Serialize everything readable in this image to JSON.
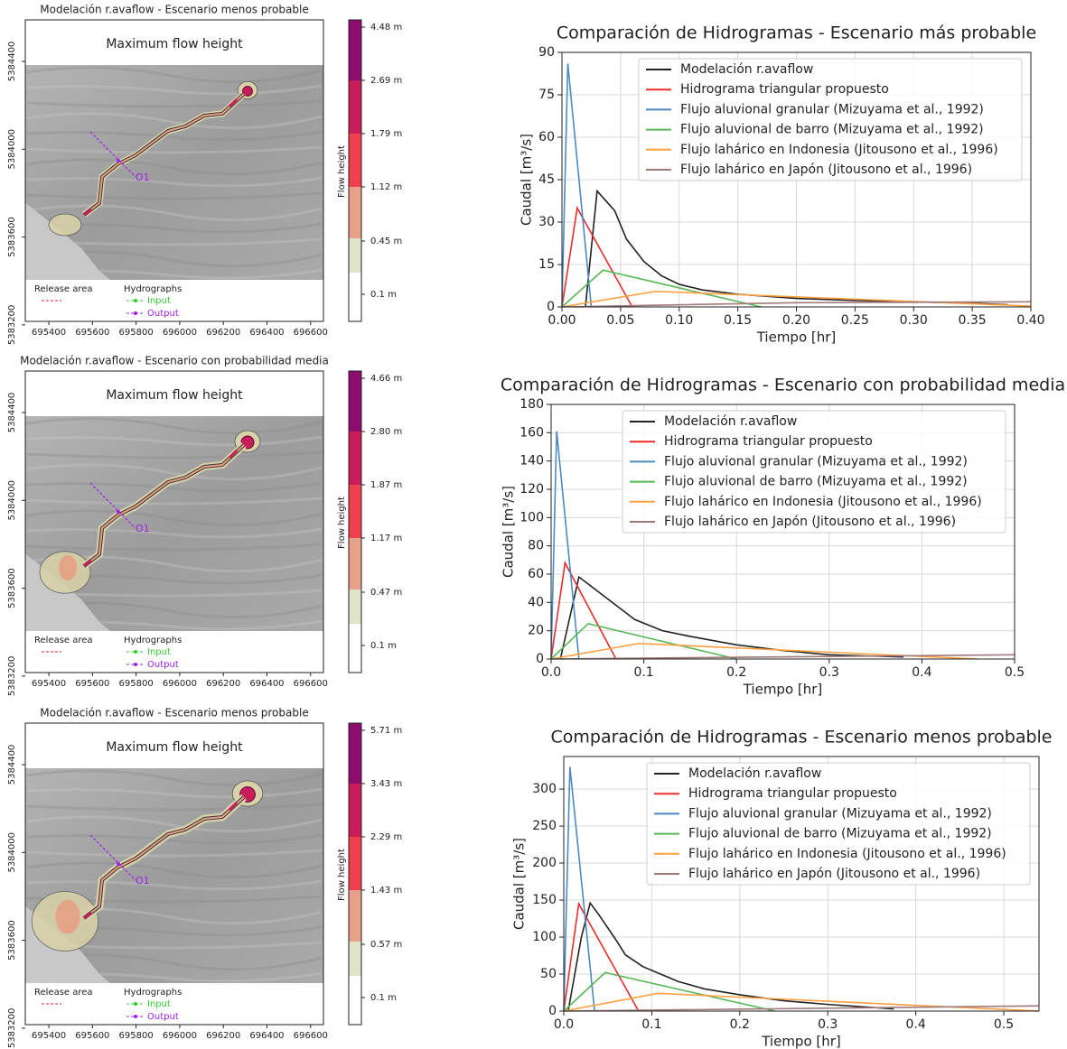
{
  "maps": [
    {
      "title": "Modelación r.avaflow - Escenario menos probable",
      "heading": "Maximum flow height",
      "colorbar_label": "Flow height",
      "colorbar_ticks": [
        "4.48 m",
        "2.69 m",
        "1.79 m",
        "1.12 m",
        "0.45 m",
        "0.1 m"
      ],
      "colorbar_colors": [
        "#8e0c6e",
        "#c81d5a",
        "#ef4050",
        "#e8a08a",
        "#dfe3c8",
        "#ffffff"
      ],
      "xlim": [
        695292,
        696659
      ],
      "xticks": [
        695400,
        695600,
        695800,
        696000,
        696200,
        696400,
        696600
      ],
      "ylim": [
        5383216,
        5384589
      ],
      "yticks": [
        5383200,
        5383600,
        5384000,
        5384400
      ],
      "release_area": "Release area",
      "hydrographs": "Hydrographs",
      "input": "Input",
      "output": "Output",
      "outlet": "O1"
    },
    {
      "title": "Modelación r.avaflow - Escenario con probabilidad media",
      "heading": "Maximum flow height",
      "colorbar_label": "Flow height",
      "colorbar_ticks": [
        "4.66 m",
        "2.80 m",
        "1.87 m",
        "1.17 m",
        "0.47 m",
        "0.1 m"
      ],
      "colorbar_colors": [
        "#8e0c6e",
        "#c81d5a",
        "#ef4050",
        "#e8a08a",
        "#dfe3c8",
        "#ffffff"
      ],
      "xlim": [
        695292,
        696659
      ],
      "xticks": [
        695400,
        695600,
        695800,
        696000,
        696200,
        696400,
        696600
      ],
      "ylim": [
        5383216,
        5384589
      ],
      "yticks": [
        5383200,
        5383600,
        5384000,
        5384400
      ],
      "release_area": "Release area",
      "hydrographs": "Hydrographs",
      "input": "Input",
      "output": "Output",
      "outlet": "O1"
    },
    {
      "title": "Modelación r.avaflow - Escenario menos probable",
      "heading": "Maximum flow height",
      "colorbar_label": "Flow height",
      "colorbar_ticks": [
        "5.71 m",
        "3.43 m",
        "2.29 m",
        "1.43 m",
        "0.57 m",
        "0.1 m"
      ],
      "colorbar_colors": [
        "#8e0c6e",
        "#c81d5a",
        "#ef4050",
        "#e8a08a",
        "#dfe3c8",
        "#ffffff"
      ],
      "xlim": [
        695292,
        696659
      ],
      "xticks": [
        695400,
        695600,
        695800,
        696000,
        696200,
        696400,
        696600
      ],
      "ylim": [
        5383216,
        5384589
      ],
      "yticks": [
        5383200,
        5383600,
        5384000,
        5384400
      ],
      "release_area": "Release area",
      "hydrographs": "Hydrographs",
      "input": "Input",
      "output": "Output",
      "outlet": "O1"
    }
  ],
  "chart_data": [
    {
      "type": "line",
      "title": "Comparación de Hidrogramas - Escenario más probable",
      "xlabel": "Tiempo [hr]",
      "ylabel": "Caudal [m³/s]",
      "xlim": [
        0,
        0.4
      ],
      "ylim": [
        0,
        90
      ],
      "xticks": [
        {
          "value": 0,
          "label": "0.00"
        },
        0.05,
        {
          "value": 0.1,
          "label": "0.10"
        },
        0.15,
        {
          "value": 0.2,
          "label": "0.20"
        },
        0.25,
        {
          "value": 0.3,
          "label": "0.30"
        },
        0.35,
        {
          "value": 0.4,
          "label": "0.40"
        }
      ],
      "yticks": [
        0,
        15,
        30,
        45,
        60,
        75,
        90
      ],
      "grid": true,
      "legend": "upper right",
      "series": [
        {
          "name": "Modelación r.avaflow",
          "color": "#222222",
          "x": [
            0.02,
            0.03,
            0.045,
            0.055,
            0.07,
            0.085,
            0.1,
            0.12,
            0.15,
            0.2,
            0.25,
            0.3,
            0.35,
            0.38
          ],
          "values": [
            0,
            41,
            34,
            24,
            16,
            11,
            8,
            6,
            4.5,
            3,
            2.3,
            1.8,
            1.3,
            0.8
          ]
        },
        {
          "name": "Hidrograma triangular propuesto",
          "color": "#ee2a2a",
          "x": [
            0,
            0.013,
            0.06
          ],
          "values": [
            0,
            35,
            0
          ]
        },
        {
          "name": "Flujo aluvional granular (Mizuyama et al., 1992)",
          "color": "#4a8ac4",
          "x": [
            0,
            0.005,
            0.025
          ],
          "values": [
            0,
            86,
            0
          ]
        },
        {
          "name": "Flujo aluvional de barro (Mizuyama et al., 1992)",
          "color": "#55b855",
          "x": [
            0,
            0.035,
            0.17
          ],
          "values": [
            0,
            13,
            0
          ]
        },
        {
          "name": "Flujo lahárico en Indonesia (Jitousono et al., 1996)",
          "color": "#ffa040",
          "x": [
            0,
            0.08,
            0.4
          ],
          "values": [
            0,
            5.5,
            0.3
          ]
        },
        {
          "name": "Flujo lahárico en Japón (Jitousono et al., 1996)",
          "color": "#a07878",
          "x": [
            0,
            0.2,
            0.4
          ],
          "values": [
            0,
            1.5,
            1.8
          ]
        }
      ]
    },
    {
      "type": "line",
      "title": "Comparación de Hidrogramas - Escenario con probabilidad media",
      "xlabel": "Tiempo [hr]",
      "ylabel": "Caudal [m³/s]",
      "xlim": [
        0,
        0.5
      ],
      "ylim": [
        0,
        180
      ],
      "xticks": [
        {
          "value": 0,
          "label": "0.0"
        },
        0.1,
        0.2,
        0.3,
        0.4,
        0.5
      ],
      "yticks": [
        0,
        20,
        40,
        60,
        80,
        100,
        120,
        140,
        160,
        180
      ],
      "grid": true,
      "legend": "upper right",
      "series": [
        {
          "name": "Modelación r.avaflow",
          "color": "#222222",
          "x": [
            0.01,
            0.03,
            0.05,
            0.06,
            0.08,
            0.09,
            0.12,
            0.15,
            0.2,
            0.25,
            0.3,
            0.35,
            0.38
          ],
          "values": [
            0,
            58,
            48,
            43,
            33,
            28,
            20,
            16,
            10,
            6,
            3,
            2,
            1.5
          ]
        },
        {
          "name": "Hidrograma triangular propuesto",
          "color": "#ee2a2a",
          "x": [
            0,
            0.015,
            0.07
          ],
          "values": [
            0,
            68,
            0
          ]
        },
        {
          "name": "Flujo aluvional granular (Mizuyama et al., 1992)",
          "color": "#4a8ac4",
          "x": [
            0,
            0.006,
            0.03
          ],
          "values": [
            0,
            161,
            0
          ]
        },
        {
          "name": "Flujo aluvional de barro (Mizuyama et al., 1992)",
          "color": "#55b855",
          "x": [
            0,
            0.04,
            0.2
          ],
          "values": [
            0,
            25,
            0
          ]
        },
        {
          "name": "Flujo lahárico en Indonesia (Jitousono et al., 1996)",
          "color": "#ffa040",
          "x": [
            0,
            0.095,
            0.46
          ],
          "values": [
            0,
            11,
            0
          ]
        },
        {
          "name": "Flujo lahárico en Japón (Jitousono et al., 1996)",
          "color": "#a07878",
          "x": [
            0,
            0.5
          ],
          "values": [
            0,
            3
          ]
        }
      ]
    },
    {
      "type": "line",
      "title": "Comparación de Hidrogramas - Escenario menos probable",
      "xlabel": "Tiempo [hr]",
      "ylabel": "Caudal [m³/s]",
      "xlim": [
        0,
        0.54
      ],
      "ylim": [
        0,
        344
      ],
      "xticks": [
        {
          "value": 0,
          "label": "0.0"
        },
        0.1,
        0.2,
        0.3,
        0.4,
        0.5
      ],
      "yticks": [
        0,
        50,
        100,
        150,
        200,
        250,
        300
      ],
      "grid": true,
      "legend": "upper right",
      "series": [
        {
          "name": "Modelación r.avaflow",
          "color": "#222222",
          "x": [
            0.005,
            0.02,
            0.03,
            0.04,
            0.06,
            0.07,
            0.09,
            0.11,
            0.13,
            0.16,
            0.2,
            0.25,
            0.3,
            0.35,
            0.375
          ],
          "values": [
            0,
            100,
            146,
            130,
            95,
            76,
            60,
            50,
            40,
            30,
            22,
            14,
            9,
            5,
            3
          ]
        },
        {
          "name": "Hidrograma triangular propuesto",
          "color": "#ee2a2a",
          "x": [
            0,
            0.017,
            0.085
          ],
          "values": [
            0,
            145,
            0
          ]
        },
        {
          "name": "Flujo aluvional granular (Mizuyama et al., 1992)",
          "color": "#4a8ac4",
          "x": [
            0,
            0.007,
            0.035
          ],
          "values": [
            0,
            330,
            0
          ]
        },
        {
          "name": "Flujo aluvional de barro (Mizuyama et al., 1992)",
          "color": "#55b855",
          "x": [
            0,
            0.047,
            0.24
          ],
          "values": [
            0,
            52,
            0
          ]
        },
        {
          "name": "Flujo lahárico en Indonesia (Jitousono et al., 1996)",
          "color": "#ffa040",
          "x": [
            0,
            0.107,
            0.54
          ],
          "values": [
            0,
            24,
            0
          ]
        },
        {
          "name": "Flujo lahárico en Japón (Jitousono et al., 1996)",
          "color": "#a07878",
          "x": [
            0,
            0.54
          ],
          "values": [
            0,
            7
          ]
        }
      ]
    }
  ]
}
